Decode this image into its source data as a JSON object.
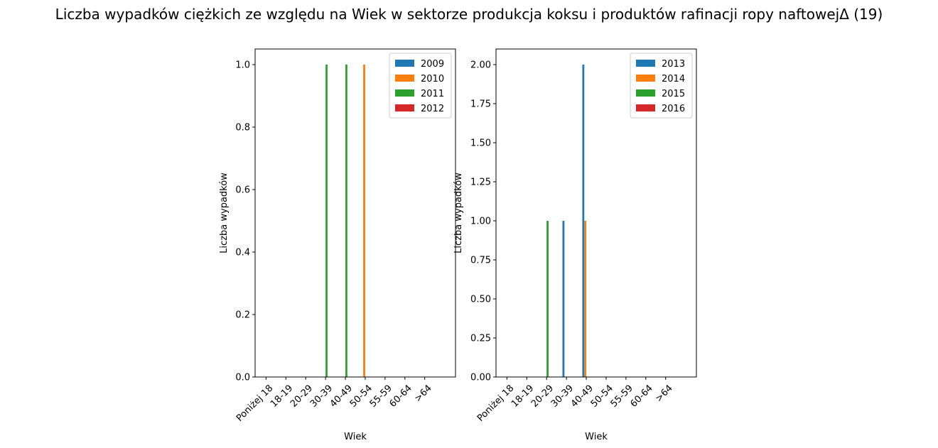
{
  "suptitle": "Liczba wypadków ciężkich ze względu na Wiek w sektorze produkcja koksu i produktów rafinacji ropy naftowejΔ (19)",
  "chart_data": [
    {
      "type": "bar",
      "title": "",
      "xlabel": "Wiek",
      "ylabel": "Liczba wypadków",
      "categories": [
        "Poniżej 18",
        "18-19",
        "20-29",
        "30-39",
        "40-49",
        "50-54",
        "55-59",
        "60-64",
        ">64"
      ],
      "ylim": [
        0,
        1.05
      ],
      "yticks": [
        "0.0",
        "0.2",
        "0.4",
        "0.6",
        "0.8",
        "1.0"
      ],
      "legend_position": "top-right",
      "series": [
        {
          "name": "2009",
          "color": "#1f77b4",
          "values": [
            0,
            0,
            0,
            0,
            0,
            0,
            0,
            0,
            0
          ]
        },
        {
          "name": "2010",
          "color": "#ff7f0e",
          "values": [
            0,
            0,
            0,
            0,
            0,
            1,
            0,
            0,
            0
          ]
        },
        {
          "name": "2011",
          "color": "#2ca02c",
          "values": [
            0,
            0,
            0,
            1,
            1,
            0,
            0,
            0,
            0
          ]
        },
        {
          "name": "2012",
          "color": "#d62728",
          "values": [
            0,
            0,
            0,
            0,
            0,
            0,
            0,
            0,
            0
          ]
        }
      ]
    },
    {
      "type": "bar",
      "title": "",
      "xlabel": "Wiek",
      "ylabel": "Liczba wypadków",
      "categories": [
        "Poniżej 18",
        "18-19",
        "20-29",
        "30-39",
        "40-49",
        "50-54",
        "55-59",
        "60-64",
        ">64"
      ],
      "ylim": [
        0,
        2.1
      ],
      "yticks": [
        "0.00",
        "0.25",
        "0.50",
        "0.75",
        "1.00",
        "1.25",
        "1.50",
        "1.75",
        "2.00"
      ],
      "legend_position": "top-right",
      "series": [
        {
          "name": "2013",
          "color": "#1f77b4",
          "values": [
            0,
            0,
            0,
            1,
            2,
            0,
            0,
            0,
            0
          ]
        },
        {
          "name": "2014",
          "color": "#ff7f0e",
          "values": [
            0,
            0,
            0,
            0,
            1,
            0,
            0,
            0,
            0
          ]
        },
        {
          "name": "2015",
          "color": "#2ca02c",
          "values": [
            0,
            0,
            1,
            0,
            0,
            0,
            0,
            0,
            0
          ]
        },
        {
          "name": "2016",
          "color": "#d62728",
          "values": [
            0,
            0,
            0,
            0,
            0,
            0,
            0,
            0,
            0
          ]
        }
      ]
    }
  ]
}
